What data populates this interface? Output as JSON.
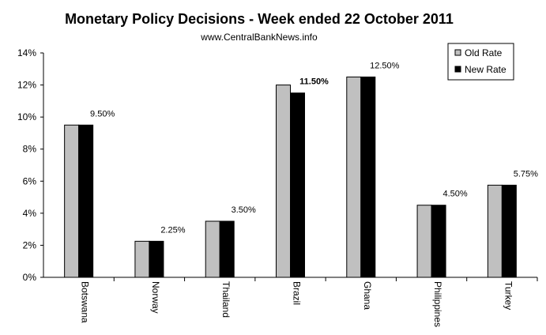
{
  "colors": {
    "old_rate": "#c0c0c0",
    "new_rate": "#000000",
    "axis": "#000000"
  },
  "chart_data": {
    "type": "bar",
    "title": "Monetary Policy Decisions - Week ended  22 October 2011",
    "subtitle": "www.CentralBankNews.info",
    "categories": [
      "Botswana",
      "Norway",
      "Thailand",
      "Brazil",
      "Ghana",
      "Philippines",
      "Turkey"
    ],
    "series": [
      {
        "name": "Old Rate",
        "values": [
          9.5,
          2.25,
          3.5,
          12.0,
          12.5,
          4.5,
          5.75
        ]
      },
      {
        "name": "New Rate",
        "values": [
          9.5,
          2.25,
          3.5,
          11.5,
          12.5,
          4.5,
          5.75
        ]
      }
    ],
    "data_labels": [
      "9.50%",
      "2.25%",
      "3.50%",
      "11.50%",
      "12.50%",
      "4.50%",
      "5.75%"
    ],
    "data_label_bold": [
      false,
      false,
      false,
      true,
      false,
      false,
      false
    ],
    "y_ticks": [
      "0%",
      "2%",
      "4%",
      "6%",
      "8%",
      "10%",
      "12%",
      "14%"
    ],
    "ylim": [
      0,
      14
    ],
    "grid": false,
    "legend_position": "top-right"
  }
}
